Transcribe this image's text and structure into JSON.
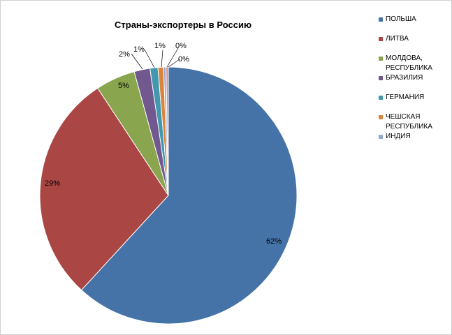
{
  "chart_data": {
    "type": "pie",
    "title": "Страны-экспортеры в Россию",
    "legend_position": "right",
    "slices": [
      {
        "name": "ПОЛЬША",
        "value": 62,
        "label": "62%",
        "color": "#4572A7"
      },
      {
        "name": "ЛИТВА",
        "value": 29,
        "label": "29%",
        "color": "#AA4643"
      },
      {
        "name": "МОЛДОВА, РЕСПУБЛИКА",
        "value": 5,
        "label": "5%",
        "color": "#89A54E"
      },
      {
        "name": "БРАЗИЛИЯ",
        "value": 2,
        "label": "2%",
        "color": "#71588F"
      },
      {
        "name": "ГЕРМАНИЯ",
        "value": 1,
        "label": "1%",
        "color": "#4198AF"
      },
      {
        "name": "ЧЕШСКАЯ РЕСПУБЛИКА",
        "value": 0.7,
        "label": "1%",
        "color": "#DB843D"
      },
      {
        "name": "ИНДИЯ",
        "value": 0.3,
        "label": "0%",
        "color": "#93A9CF"
      },
      {
        "name": "",
        "value": 0.3,
        "label": "0%",
        "color": "#D19392"
      }
    ]
  }
}
